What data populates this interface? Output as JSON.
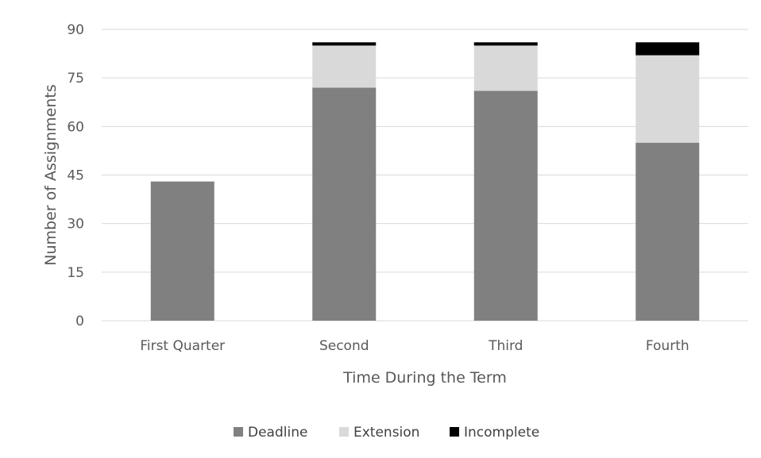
{
  "chart_data": {
    "type": "bar",
    "stacked": true,
    "categories": [
      "First Quarter",
      "Second",
      "Third",
      "Fourth"
    ],
    "series": [
      {
        "name": "Deadline",
        "values": [
          43,
          72,
          71,
          55
        ],
        "color": "#808080"
      },
      {
        "name": "Extension",
        "values": [
          0,
          13,
          14,
          27
        ],
        "color": "#d9d9d9"
      },
      {
        "name": "Incomplete",
        "values": [
          0,
          1,
          1,
          4
        ],
        "color": "#000000"
      }
    ],
    "ylim": [
      0,
      90
    ],
    "yticks": [
      "0",
      "15",
      "30",
      "45",
      "60",
      "75",
      "90"
    ],
    "xlabel": "Time During the Term",
    "ylabel": "Number of Assignments",
    "grid": true,
    "legend_position": "bottom"
  }
}
